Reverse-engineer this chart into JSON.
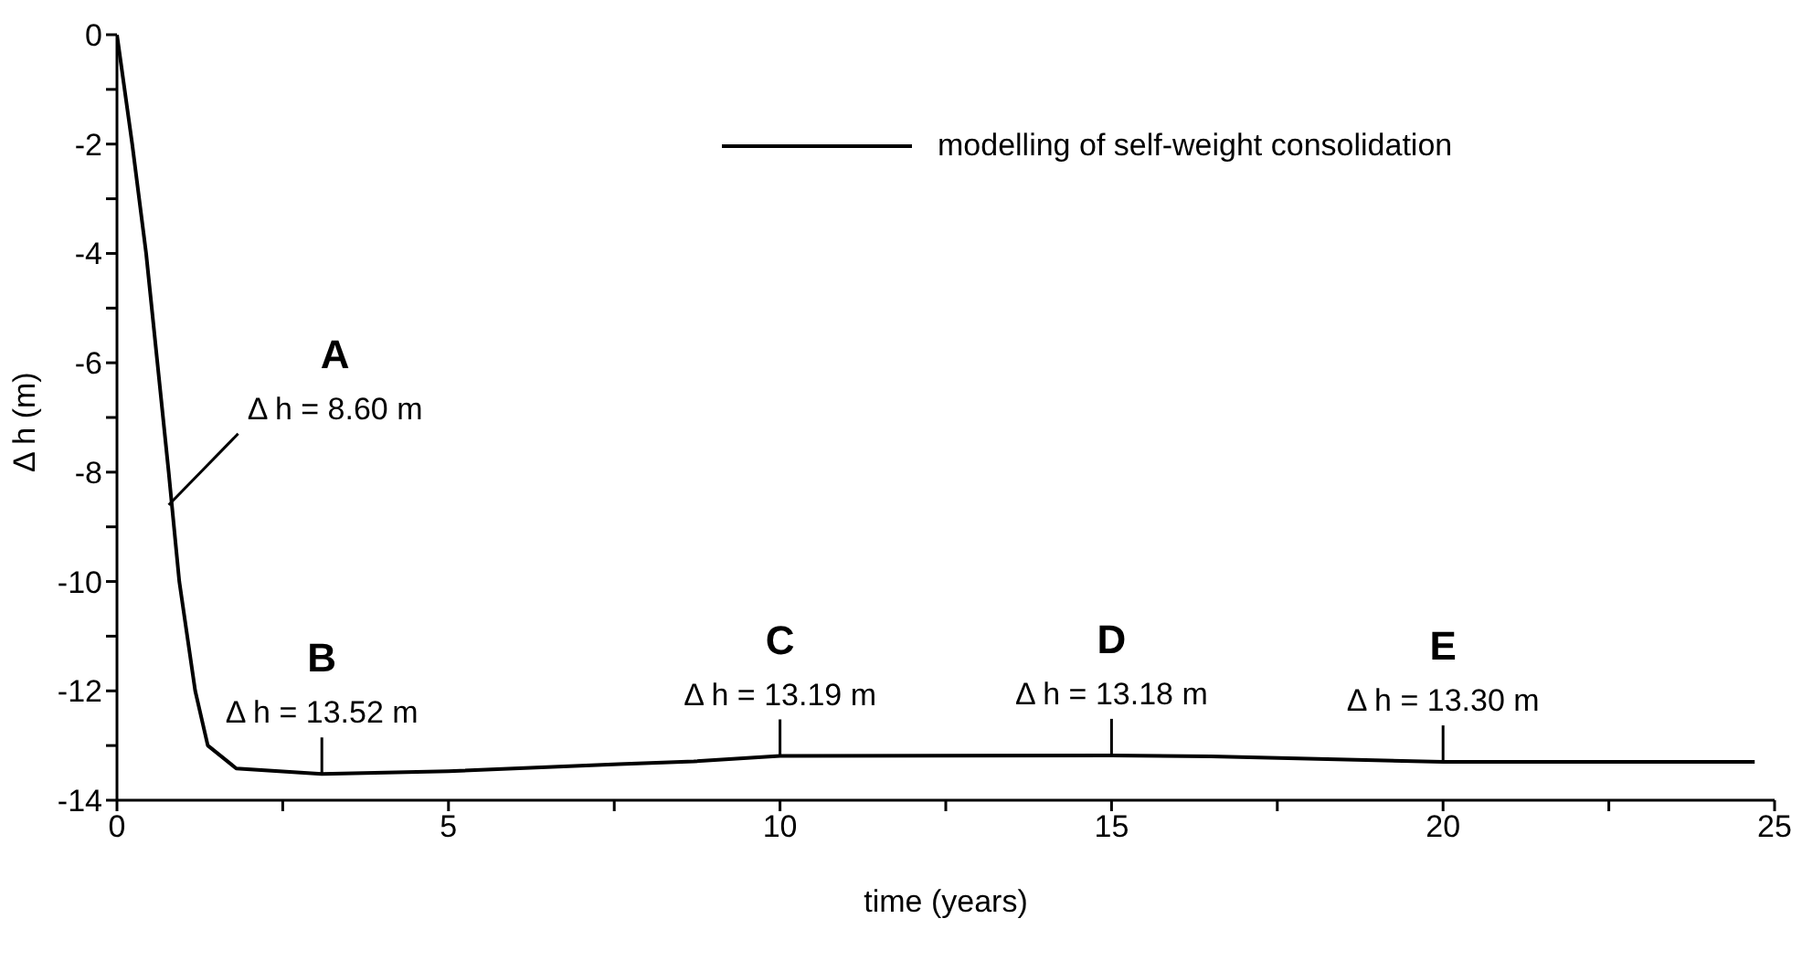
{
  "chart_data": {
    "type": "line",
    "xlabel": "time (years)",
    "ylabel": "Δ h (m)",
    "xlim": [
      0,
      25
    ],
    "ylim": [
      -14,
      0
    ],
    "xticks": [
      0,
      {
        "value": 2.5,
        "label": null
      },
      5,
      {
        "value": 7.5,
        "label": null
      },
      10,
      {
        "value": 12.5,
        "label": null
      },
      15,
      {
        "value": 17.5,
        "label": null
      },
      20,
      {
        "value": 22.5,
        "label": null
      },
      25
    ],
    "yticks": [
      -14,
      {
        "value": -13,
        "label": null
      },
      -12,
      {
        "value": -11,
        "label": null
      },
      -10,
      {
        "value": -9,
        "label": null
      },
      -8,
      {
        "value": -7,
        "label": null
      },
      -6,
      {
        "value": -5,
        "label": null
      },
      -4,
      {
        "value": -3,
        "label": null
      },
      -2,
      {
        "value": -1,
        "label": null
      },
      0
    ],
    "grid": false,
    "legend": "top right",
    "marker": "none",
    "line_style": "solid",
    "series": [
      {
        "name": "modelling of self-weight consolidation",
        "color": "#000000",
        "x": [
          0,
          0.23,
          0.44,
          0.61,
          0.78,
          0.94,
          1.18,
          1.37,
          1.8,
          3.09,
          5,
          7.57,
          8.7,
          10,
          15,
          16.5,
          20,
          24.7
        ],
        "values": [
          0,
          -2,
          -4,
          -6,
          -8,
          -10,
          -12,
          -13,
          -13.42,
          -13.52,
          -13.47,
          -13.34,
          -13.29,
          -13.19,
          -13.18,
          -13.2,
          -13.3,
          -13.3
        ]
      }
    ],
    "annotations": [
      "A",
      {
        "text": "Δ h = 8.60 m",
        "x": 0.78,
        "y": -8.6
      },
      "B",
      {
        "text": "Δ h = 13.52 m",
        "x": 3.09,
        "y": -13.52
      },
      "C",
      {
        "text": "Δ h = 13.19 m",
        "x": 10,
        "y": -13.19
      },
      "D",
      {
        "text": "Δ h = 13.18 m",
        "x": 15,
        "y": -13.18
      },
      "E",
      {
        "text": "Δ h = 13.30 m",
        "x": 20,
        "y": -13.3
      }
    ]
  }
}
